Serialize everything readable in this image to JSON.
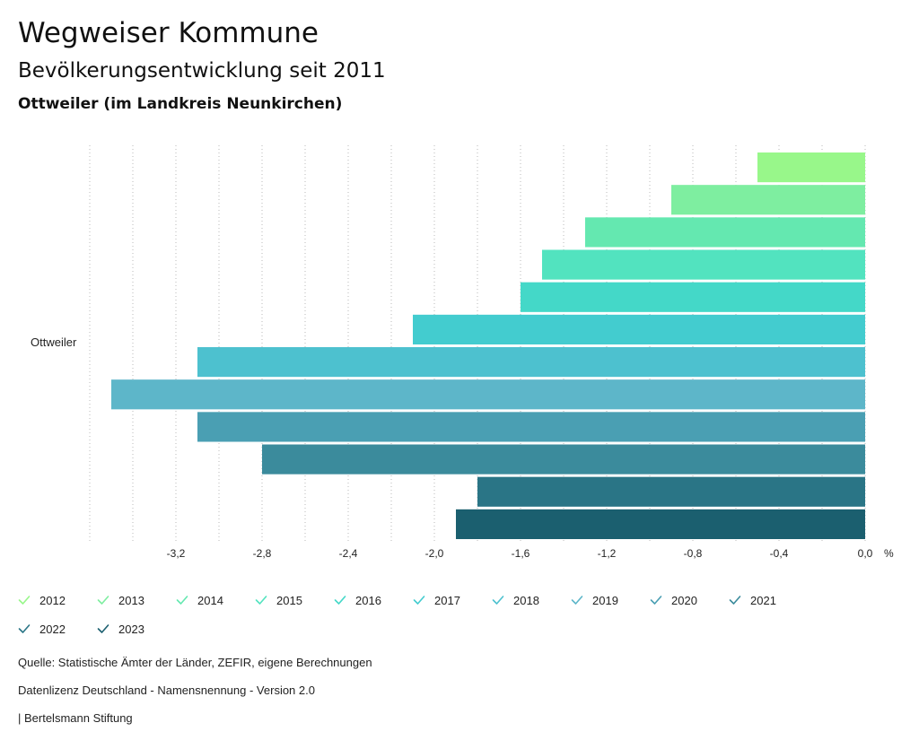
{
  "header": {
    "title": "Wegweiser Kommune",
    "subtitle": "Bevölkerungsentwicklung seit 2011",
    "region": "Ottweiler (im Landkreis Neunkirchen)"
  },
  "chart_data": {
    "type": "bar",
    "orientation": "horizontal",
    "category": "Ottweiler",
    "unit": "%",
    "xlim": [
      -3.6,
      0.0
    ],
    "xticks": [
      "-3,2",
      "-2,8",
      "-2,4",
      "-2,0",
      "-1,6",
      "-1,2",
      "-0,8",
      "-0,4",
      "0,0"
    ],
    "xtick_values": [
      -3.2,
      -2.8,
      -2.4,
      -2.0,
      -1.6,
      -1.2,
      -0.8,
      -0.4,
      0.0
    ],
    "grid": true,
    "series": [
      {
        "name": "2012",
        "value": -0.5,
        "color": "#98f78a"
      },
      {
        "name": "2013",
        "value": -0.9,
        "color": "#7eeea0"
      },
      {
        "name": "2014",
        "value": -1.3,
        "color": "#64e8b0"
      },
      {
        "name": "2015",
        "value": -1.5,
        "color": "#52e3bf"
      },
      {
        "name": "2016",
        "value": -1.6,
        "color": "#44d8c8"
      },
      {
        "name": "2017",
        "value": -2.1,
        "color": "#43cccf"
      },
      {
        "name": "2018",
        "value": -3.1,
        "color": "#4dc1cf"
      },
      {
        "name": "2019",
        "value": -3.5,
        "color": "#5db6c9"
      },
      {
        "name": "2020",
        "value": -3.1,
        "color": "#4a9fb3"
      },
      {
        "name": "2021",
        "value": -2.8,
        "color": "#3b8b9c"
      },
      {
        "name": "2022",
        "value": -1.8,
        "color": "#2a7586"
      },
      {
        "name": "2023",
        "value": -1.9,
        "color": "#1b5f6f"
      }
    ]
  },
  "footer": {
    "source": "Quelle: Statistische Ämter der Länder, ZEFIR, eigene Berechnungen",
    "license": "Datenlizenz Deutschland - Namensnennung - Version 2.0",
    "publisher": "| Bertelsmann Stiftung"
  }
}
